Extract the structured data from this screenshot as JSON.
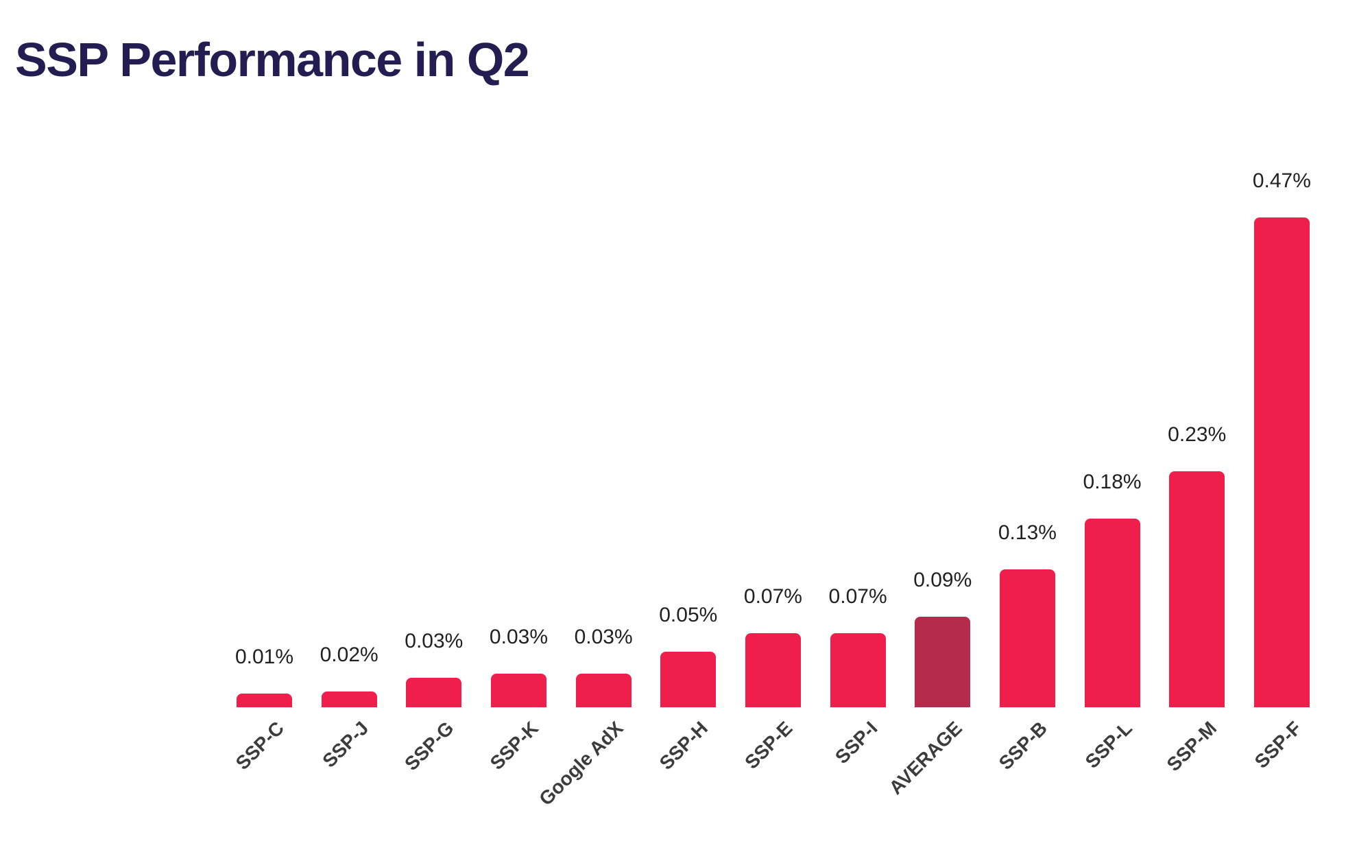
{
  "header": {
    "title": "SSP Performance in Q2"
  },
  "chart_data": {
    "type": "bar",
    "title": "SSP Performance in Q2",
    "categories": [
      "SSP-C",
      "SSP-J",
      "SSP-G",
      "SSP-K",
      "Google AdX",
      "SSP-H",
      "SSP-E",
      "SSP-I",
      "AVERAGE",
      "SSP-B",
      "SSP-L",
      "SSP-M",
      "SSP-F"
    ],
    "values": [
      0.013,
      0.015,
      0.028,
      0.032,
      0.032,
      0.053,
      0.071,
      0.071,
      0.087,
      0.132,
      0.181,
      0.226,
      0.47
    ],
    "value_labels": [
      "0.01%",
      "0.02%",
      "0.03%",
      "0.03%",
      "0.03%",
      "0.05%",
      "0.07%",
      "0.07%",
      "0.09%",
      "0.13%",
      "0.18%",
      "0.23%",
      "0.47%"
    ],
    "unit": "%",
    "highlight_category": "AVERAGE",
    "sort": "ascending",
    "xlabel": "",
    "ylabel": "",
    "ylim": [
      0,
      0.5
    ],
    "grid": false,
    "legend": false,
    "axis_lines": false,
    "x_tick_rotation_deg": 45,
    "colors": {
      "bar": "#EF1E4B",
      "highlight": "#B52B4C",
      "title": "#241D52",
      "value_label": "#212121",
      "category_label": "#3C3C3C",
      "background": "#FFFFFF"
    }
  }
}
